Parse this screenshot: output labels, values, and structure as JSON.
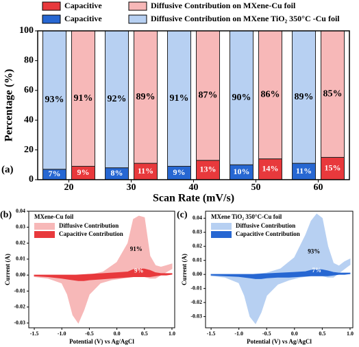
{
  "chart_data": [
    {
      "type": "bar",
      "label": "(a)",
      "xlabel": "Scan Rate (mV/s)",
      "ylabel": "Percentage (%)",
      "categories": [
        "20",
        "30",
        "40",
        "50",
        "60"
      ],
      "ylim": [
        0,
        100
      ],
      "yticks": [
        0,
        20,
        40,
        60,
        80,
        100
      ],
      "series": [
        {
          "name": "Capacitive",
          "color": "#2767d2",
          "values": [
            7,
            8,
            9,
            10,
            11
          ],
          "value_labels": [
            "7%",
            "8%",
            "9%",
            "10%",
            "11%"
          ]
        },
        {
          "name": "Diffusive Contribution on MXene TiO₂ 350°C -Cu foil",
          "color": "#b7d0f2",
          "values": [
            93,
            92,
            91,
            90,
            89
          ],
          "value_labels": [
            "93%",
            "92%",
            "91%",
            "90%",
            "89%"
          ]
        },
        {
          "name": "Capacitive",
          "color": "#e8393c",
          "values": [
            9,
            11,
            13,
            14,
            15
          ],
          "value_labels": [
            "9%",
            "11%",
            "13%",
            "14%",
            "15%"
          ]
        },
        {
          "name": "Diffusive Contribution on MXene-Cu foil",
          "color": "#f7b8b8",
          "values": [
            91,
            89,
            87,
            86,
            85
          ],
          "value_labels": [
            "91%",
            "89%",
            "87%",
            "86%",
            "85%"
          ]
        }
      ]
    },
    {
      "type": "area",
      "label": "(b)",
      "title": "MXene-Cu foil",
      "xlabel": "Potential (V) vs Ag/AgCl",
      "ylabel": "Current (A)",
      "x": [
        -1.5,
        -1.25,
        -1.0,
        -0.75,
        -0.5,
        -0.25,
        0,
        0.2,
        0.3,
        0.4,
        0.5,
        0.6,
        0.7,
        0.8,
        0.9,
        1.0,
        1.0,
        0.9,
        0.8,
        0.7,
        0.6,
        0.5,
        0.3,
        0.1,
        -0.1,
        -0.3,
        -0.5,
        -0.6,
        -0.7,
        -0.8,
        -0.9,
        -1.0,
        -1.25,
        -1.5
      ],
      "xlim": [
        -1.6,
        1.05
      ],
      "xticks": [
        -1.5,
        {
          "value": -1,
          "label": "-1.0"
        },
        -0.5,
        {
          "value": 0,
          "label": "0.0"
        },
        0.5,
        {
          "value": 1,
          "label": "1.0"
        }
      ],
      "ylim": [
        -0.033,
        0.04
      ],
      "yticks": [
        -0.03,
        -0.02,
        -0.01,
        {
          "value": 0,
          "label": "0.00"
        },
        0.01,
        0.02,
        0.03,
        0.04
      ],
      "series": [
        {
          "name": "Diffusive Contribution",
          "color": "#f7b8b8",
          "values": [
            0,
            0,
            0,
            0,
            0,
            0.002,
            0.008,
            0.02,
            0.035,
            0.037,
            0.036,
            0.012,
            0.006,
            0.005,
            0.006,
            0.007,
            0.004,
            0.002,
            0,
            -0.002,
            -0.002,
            -0.001,
            -0.001,
            -0.002,
            -0.003,
            -0.005,
            -0.012,
            -0.022,
            -0.03,
            -0.025,
            -0.012,
            -0.005,
            -0.002,
            -0.001
          ]
        },
        {
          "name": "Capacitive Contribution",
          "color": "#e8393c",
          "values": [
            0,
            0,
            0,
            0,
            0.0005,
            0.001,
            0.0015,
            0.002,
            0.0035,
            0.004,
            0.0038,
            0.003,
            0.0015,
            0.001,
            0.001,
            0.001,
            0.0005,
            0,
            0,
            -0.0005,
            -0.001,
            -0.001,
            -0.001,
            -0.0015,
            -0.002,
            -0.0025,
            -0.003,
            -0.0035,
            -0.0035,
            -0.003,
            -0.0025,
            -0.002,
            -0.001,
            -0.0005
          ]
        }
      ],
      "annotations": [
        "91%",
        "9%"
      ]
    },
    {
      "type": "area",
      "label": "(c)",
      "title": "MXene TiO₂ 350°C-Cu foil",
      "xlabel": "Potential (V) vs Ag/AgCl",
      "ylabel": "Current (A)",
      "x": [
        -1.5,
        -1.25,
        -1.0,
        -0.75,
        -0.5,
        -0.25,
        0,
        0.2,
        0.3,
        0.4,
        0.5,
        0.6,
        0.7,
        0.8,
        0.9,
        1.0,
        1.0,
        0.9,
        0.8,
        0.7,
        0.6,
        0.5,
        0.3,
        0.1,
        -0.1,
        -0.3,
        -0.5,
        -0.6,
        -0.7,
        -0.8,
        -0.9,
        -1.0,
        -1.25,
        -1.5
      ],
      "xlim": [
        -1.6,
        1.05
      ],
      "xticks": [
        -1.5,
        {
          "value": -1,
          "label": "-1.0"
        },
        -0.5,
        {
          "value": 0,
          "label": "0.0"
        },
        0.5,
        {
          "value": 1,
          "label": "1.0"
        }
      ],
      "ylim": [
        -0.038,
        0.045
      ],
      "yticks": [
        -0.03,
        -0.02,
        -0.01,
        {
          "value": 0,
          "label": "0.00"
        },
        0.01,
        0.02,
        0.03,
        0.04
      ],
      "series": [
        {
          "name": "Diffusive Contribution",
          "color": "#b7d0f2",
          "values": [
            0,
            0,
            0,
            0,
            0.001,
            0.004,
            0.012,
            0.028,
            0.038,
            0.043,
            0.04,
            0.02,
            0.008,
            0.006,
            0.009,
            0.011,
            0.007,
            0.004,
            0.001,
            -0.002,
            -0.002,
            -0.001,
            -0.001,
            -0.002,
            -0.004,
            -0.007,
            -0.015,
            -0.027,
            -0.035,
            -0.03,
            -0.015,
            -0.006,
            -0.002,
            -0.001
          ]
        },
        {
          "name": "Capacitive Contribution",
          "color": "#2767d2",
          "values": [
            0,
            0,
            0,
            0,
            0.0005,
            0.001,
            0.0015,
            0.002,
            0.003,
            0.0035,
            0.0033,
            0.0025,
            0.0015,
            0.001,
            0.001,
            0.001,
            0.0005,
            0,
            0,
            -0.0005,
            -0.001,
            -0.001,
            -0.001,
            -0.0015,
            -0.002,
            -0.002,
            -0.0025,
            -0.003,
            -0.003,
            -0.0025,
            -0.002,
            -0.0015,
            -0.001,
            -0.0005
          ]
        }
      ],
      "annotations": [
        "93%",
        "7%"
      ]
    }
  ]
}
